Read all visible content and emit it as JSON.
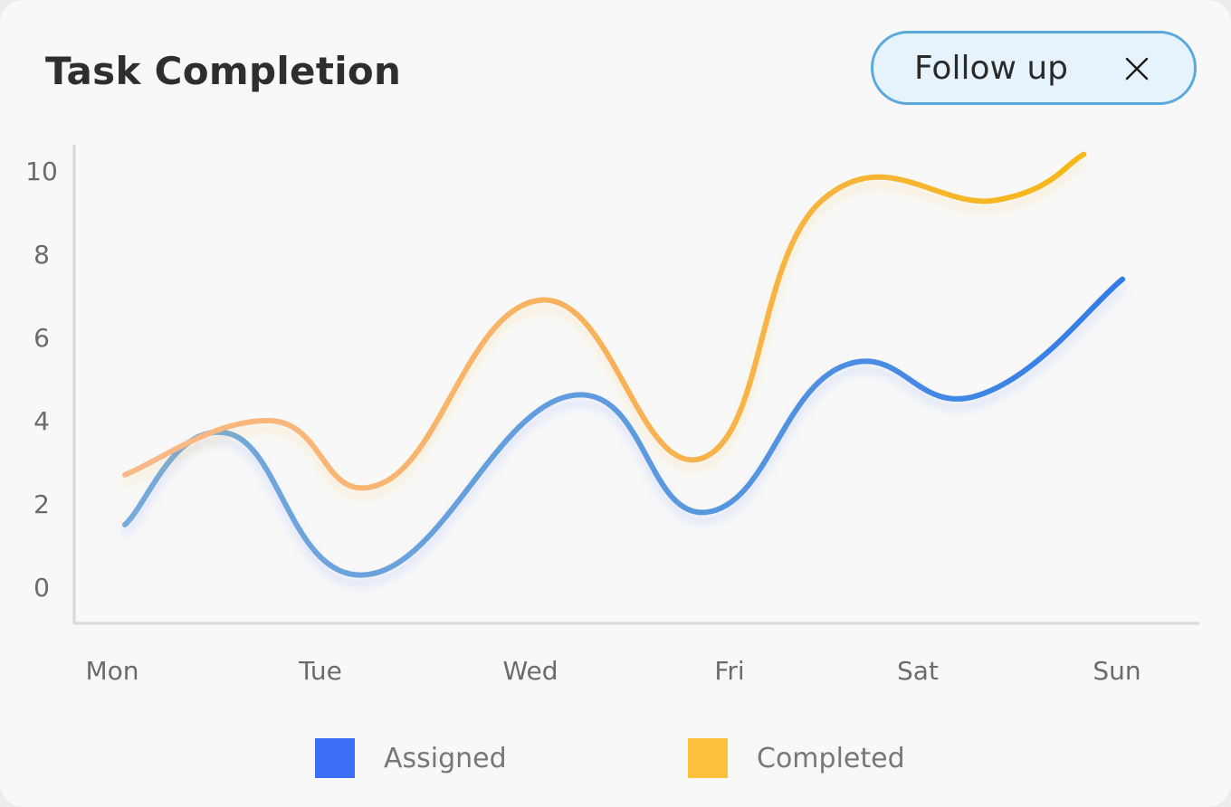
{
  "header": {
    "title": "Task Completion",
    "filter_chip": {
      "label": "Follow up",
      "close_icon": "close-icon"
    }
  },
  "colors": {
    "assigned": "#3b6ff5",
    "completed": "#fcc23c",
    "chip_border": "#5aa9dc",
    "chip_bg": "#e6f3fc"
  },
  "chart_data": {
    "type": "line",
    "title": "Task Completion",
    "xlabel": "",
    "ylabel": "",
    "categories": [
      "Mon",
      "Tue",
      "Wed",
      "Fri",
      "Sat",
      "Sun"
    ],
    "yticks": [
      "10",
      "8",
      "6",
      "4",
      "2",
      "0"
    ],
    "ylim": [
      -0.9,
      10.5
    ],
    "grid": false,
    "legend_position": "bottom-center",
    "series": [
      {
        "name": "Assigned",
        "x": [
          0,
          0.53,
          1.25,
          2.3,
          3.0,
          3.7,
          4.4,
          5.15
        ],
        "values": [
          1.5,
          3.7,
          0.3,
          4.6,
          1.8,
          5.3,
          4.6,
          7.4
        ]
      },
      {
        "name": "Completed",
        "x": [
          0,
          0.75,
          1.33,
          2.15,
          2.98,
          3.6,
          4.5,
          4.95
        ],
        "values": [
          2.7,
          4.0,
          2.5,
          6.9,
          3.1,
          9.3,
          9.3,
          10.4
        ]
      }
    ]
  },
  "legend": {
    "items": [
      {
        "label": "Assigned",
        "color": "#3b6ff5"
      },
      {
        "label": "Completed",
        "color": "#fcc23c"
      }
    ]
  }
}
